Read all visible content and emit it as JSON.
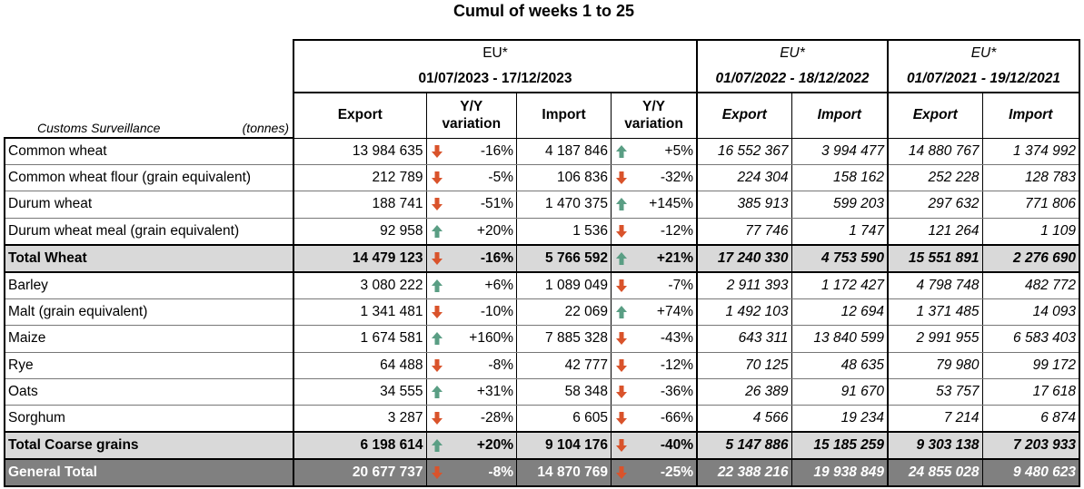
{
  "title": "Cumul of weeks 1 to 25",
  "header": {
    "label_left": "Customs Surveillance",
    "label_unit": "(tonnes)",
    "groups": [
      {
        "region": "EU*",
        "period": "01/07/2023 - 17/12/2023"
      },
      {
        "region": "EU*",
        "period": "01/07/2022 - 18/12/2022"
      },
      {
        "region": "EU*",
        "period": "01/07/2021 - 19/12/2021"
      }
    ],
    "export": "Export",
    "import": "Import",
    "yy1": "Y/Y",
    "yy2": "variation"
  },
  "colors": {
    "up": "#5a9e84",
    "down": "#d9532b",
    "total_bg": "#d9d9d9",
    "general_bg": "#808080"
  },
  "rows": [
    {
      "name": "Common wheat",
      "exp": "13 984 635",
      "ed": "down",
      "ev": "-16%",
      "imp": "4 187 846",
      "id": "up",
      "iv": "+5%",
      "e22": "16 552 367",
      "i22": "3 994 477",
      "e21": "14 880 767",
      "i21": "1 374 992"
    },
    {
      "name": "Common wheat flour (grain equivalent)",
      "exp": "212 789",
      "ed": "down",
      "ev": "-5%",
      "imp": "106 836",
      "id": "down",
      "iv": "-32%",
      "e22": "224 304",
      "i22": "158 162",
      "e21": "252 228",
      "i21": "128 783"
    },
    {
      "name": "Durum wheat",
      "exp": "188 741",
      "ed": "down",
      "ev": "-51%",
      "imp": "1 470 375",
      "id": "up",
      "iv": "+145%",
      "e22": "385 913",
      "i22": "599 203",
      "e21": "297 632",
      "i21": "771 806"
    },
    {
      "name": "Durum wheat meal (grain equivalent)",
      "exp": "92 958",
      "ed": "up",
      "ev": "+20%",
      "imp": "1 536",
      "id": "down",
      "iv": "-12%",
      "e22": "77 746",
      "i22": "1 747",
      "e21": "121 264",
      "i21": "1 109"
    },
    {
      "name": "Total Wheat",
      "type": "tot",
      "exp": "14 479 123",
      "ed": "down",
      "ev": "-16%",
      "imp": "5 766 592",
      "id": "up",
      "iv": "+21%",
      "e22": "17 240 330",
      "i22": "4 753 590",
      "e21": "15 551 891",
      "i21": "2 276 690"
    },
    {
      "name": "Barley",
      "exp": "3 080 222",
      "ed": "up",
      "ev": "+6%",
      "imp": "1 089 049",
      "id": "down",
      "iv": "-7%",
      "e22": "2 911 393",
      "i22": "1 172 427",
      "e21": "4 798 748",
      "i21": "482 772"
    },
    {
      "name": "Malt (grain equivalent)",
      "exp": "1 341 481",
      "ed": "down",
      "ev": "-10%",
      "imp": "22 069",
      "id": "up",
      "iv": "+74%",
      "e22": "1 492 103",
      "i22": "12 694",
      "e21": "1 371 485",
      "i21": "14 093"
    },
    {
      "name": "Maize",
      "exp": "1 674 581",
      "ed": "up",
      "ev": "+160%",
      "imp": "7 885 328",
      "id": "down",
      "iv": "-43%",
      "e22": "643 311",
      "i22": "13 840 599",
      "e21": "2 991 955",
      "i21": "6 583 403"
    },
    {
      "name": "Rye",
      "exp": "64 488",
      "ed": "down",
      "ev": "-8%",
      "imp": "42 777",
      "id": "down",
      "iv": "-12%",
      "e22": "70 125",
      "i22": "48 635",
      "e21": "79 980",
      "i21": "99 172"
    },
    {
      "name": "Oats",
      "exp": "34 555",
      "ed": "up",
      "ev": "+31%",
      "imp": "58 348",
      "id": "down",
      "iv": "-36%",
      "e22": "26 389",
      "i22": "91 670",
      "e21": "53 757",
      "i21": "17 618"
    },
    {
      "name": "Sorghum",
      "exp": "3 287",
      "ed": "down",
      "ev": "-28%",
      "imp": "6 605",
      "id": "down",
      "iv": "-66%",
      "e22": "4 566",
      "i22": "19 234",
      "e21": "7 214",
      "i21": "6 874"
    },
    {
      "name": "Total Coarse grains",
      "type": "tot",
      "exp": "6 198 614",
      "ed": "up",
      "ev": "+20%",
      "imp": "9 104 176",
      "id": "down",
      "iv": "-40%",
      "e22": "5 147 886",
      "i22": "15 185 259",
      "e21": "9 303 138",
      "i21": "7 203 933"
    },
    {
      "name": "General Total",
      "type": "gen",
      "exp": "20 677 737",
      "ed": "down",
      "ev": "-8%",
      "imp": "14 870 769",
      "id": "down",
      "iv": "-25%",
      "e22": "22 388 216",
      "i22": "19 938 849",
      "e21": "24 855 028",
      "i21": "9 480 623"
    }
  ]
}
